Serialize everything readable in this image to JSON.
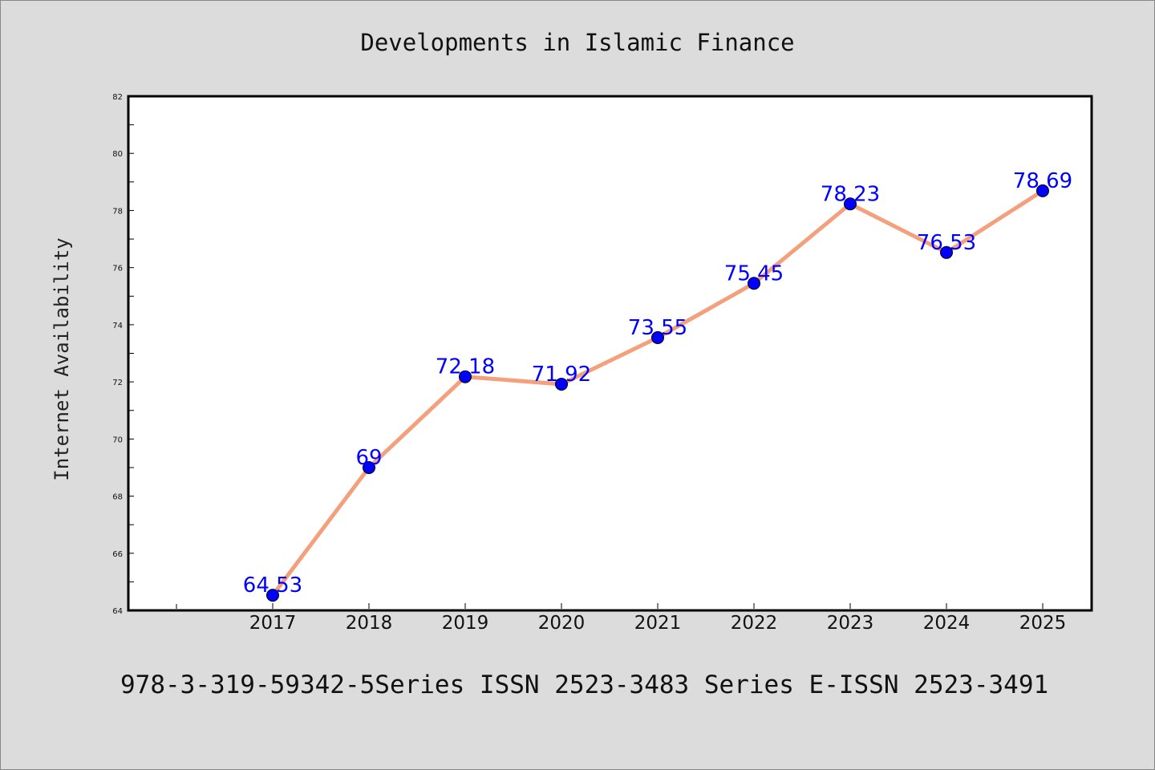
{
  "chart_data": {
    "type": "line",
    "title": "Developments in Islamic Finance",
    "xlabel": "",
    "ylabel": "Internet Availability",
    "categories": [
      "2017",
      "2018",
      "2019",
      "2020",
      "2021",
      "2022",
      "2023",
      "2024",
      "2025"
    ],
    "series": [
      {
        "values": [
          64.53,
          69,
          72.18,
          71.92,
          73.55,
          75.45,
          78.23,
          76.53,
          78.69
        ],
        "labels": [
          "64.53",
          "69",
          "72.18",
          "71.92",
          "73.55",
          "75.45",
          "78.23",
          "76.53",
          "78.69"
        ],
        "line_color": "#f4a07c",
        "marker_color": "#0000ff"
      }
    ],
    "yticks": [
      "64",
      "66",
      "68",
      "70",
      "72",
      "74",
      "76",
      "78",
      "80",
      "82"
    ],
    "ylim": [
      64,
      82
    ],
    "grid": false,
    "legend": "none"
  },
  "footer": {
    "text": "978-3-319-59342-5Series ISSN 2523-3483 Series E-ISSN 2523-3491"
  },
  "colors": {
    "background": "#dcdcdc",
    "plot_background": "#ffffff",
    "axis": "#000000"
  }
}
